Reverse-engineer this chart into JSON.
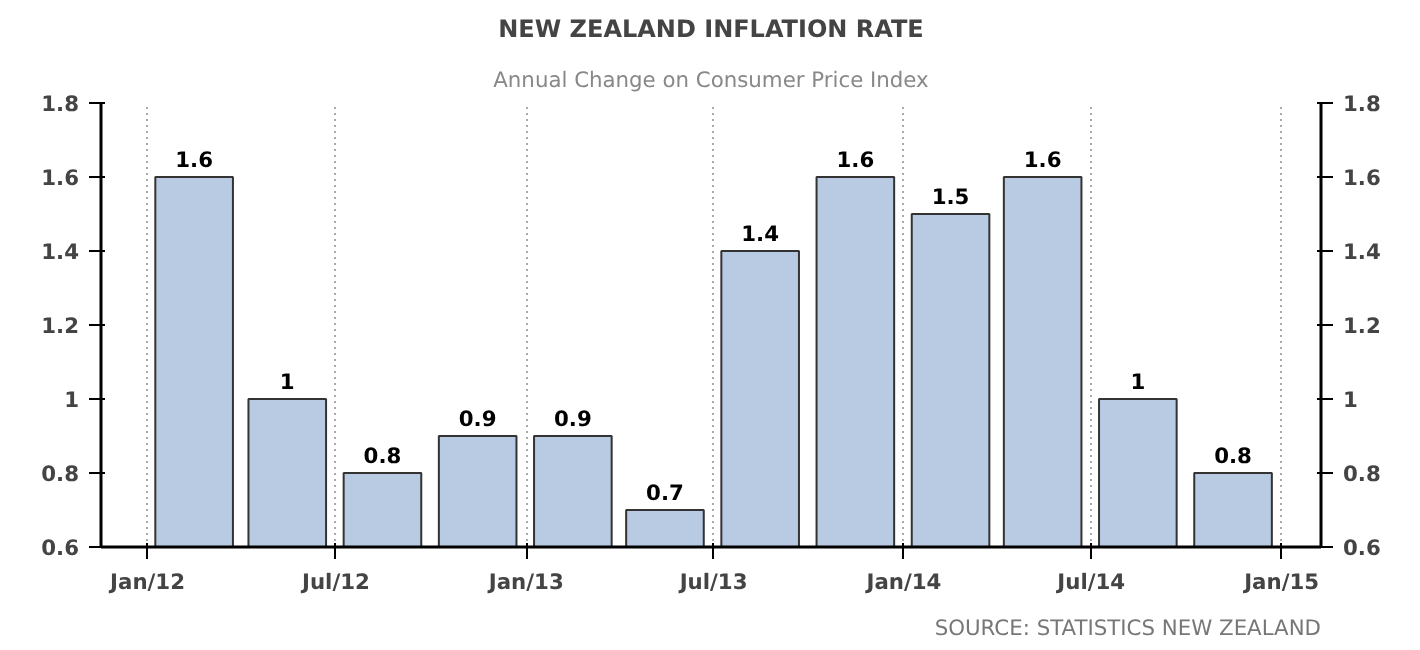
{
  "chart_data": {
    "type": "bar",
    "title": "NEW ZEALAND INFLATION RATE",
    "subtitle": "Annual Change on Consumer Price Index",
    "annotations": [
      "SOURCE: STATISTICS NEW ZEALAND"
    ],
    "x": [
      "2012-02-15",
      "2012-05-15",
      "2012-08-15",
      "2012-11-15",
      "2013-02-15",
      "2013-05-15",
      "2013-08-15",
      "2013-11-15",
      "2014-02-15",
      "2014-05-15",
      "2014-08-15",
      "2014-11-15"
    ],
    "values": [
      1.6,
      1,
      0.8,
      0.9,
      0.9,
      0.7,
      1.4,
      1.6,
      1.5,
      1.6,
      1,
      0.8
    ],
    "color": "#b9cae3",
    "data_labels": true,
    "xlim": [
      "2011-11-17",
      "2015-02-08"
    ],
    "xticks": [
      {
        "value": "2012-01-01",
        "label": "Jan/12"
      },
      {
        "value": "2012-07-01",
        "label": "Jul/12"
      },
      {
        "value": "2013-01-01",
        "label": "Jan/13"
      },
      {
        "value": "2013-07-01",
        "label": "Jul/13"
      },
      {
        "value": "2014-01-01",
        "label": "Jan/14"
      },
      {
        "value": "2014-07-01",
        "label": "Jul/14"
      },
      {
        "value": "2015-01-01",
        "label": "Jan/15"
      }
    ],
    "ylim": [
      0.6,
      1.8
    ],
    "yticks": [
      0.6,
      0.8,
      1,
      1.2,
      1.4,
      1.6,
      1.8
    ],
    "y2lim": [
      0.6,
      1.8
    ],
    "y2ticks": [
      0.6,
      0.8,
      1,
      1.2,
      1.4,
      1.6,
      1.8
    ],
    "grid": "x"
  }
}
